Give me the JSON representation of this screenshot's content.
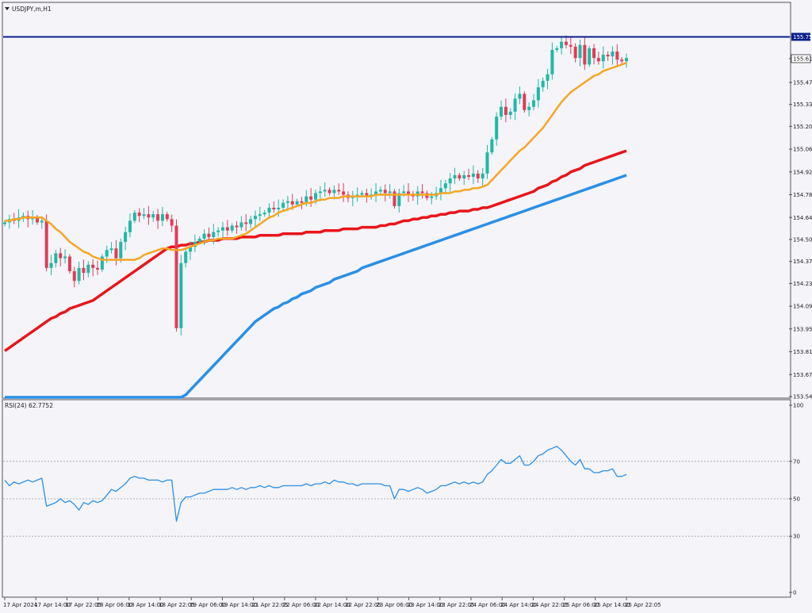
{
  "window": {
    "symbol_title": "USDJPY,m,H1"
  },
  "colors": {
    "background": "#f4f4f9",
    "bull": "#1fb8a6",
    "bear": "#e03c57",
    "ma_short": "#f6a623",
    "ma_mid": "#e8161b",
    "ma_long": "#2b8fe6",
    "rsi_line": "#2b8fe6",
    "level_line": "#0a1f8a",
    "current_price_box": "#ffffff"
  },
  "chart_data": [
    {
      "type": "candlestick",
      "title": "USDJPY,m,H1",
      "ylim": [
        153.54,
        155.84
      ],
      "y_ticks": [
        "155.750",
        "155.616",
        "155.470",
        "155.335",
        "155.200",
        "155.060",
        "154.920",
        "154.780",
        "154.640",
        "154.505",
        "154.370",
        "154.235",
        "154.095",
        "153.955",
        "153.815",
        "153.675",
        "153.540"
      ],
      "x_ticks": [
        "17 Apr 2024",
        "17 Apr 14:00",
        "17 Apr 22:05",
        "18 Apr 06:00",
        "18 Apr 14:00",
        "18 Apr 22:05",
        "19 Apr 06:00",
        "19 Apr 14:00",
        "21 Apr 22:05",
        "22 Apr 06:00",
        "22 Apr 14:00",
        "22 Apr 22:05",
        "23 Apr 06:00",
        "23 Apr 14:00",
        "23 Apr 22:05",
        "24 Apr 06:00",
        "24 Apr 14:00",
        "24 Apr 22:05",
        "25 Apr 06:00",
        "25 Apr 14:00",
        "25 Apr 22:05"
      ],
      "horizontal_level": 155.75,
      "current_price": 155.616,
      "close": [
        154.61,
        154.63,
        154.62,
        154.64,
        154.65,
        154.63,
        154.64,
        154.61,
        154.62,
        154.33,
        154.36,
        154.42,
        154.39,
        154.4,
        154.31,
        154.25,
        154.33,
        154.3,
        154.35,
        154.33,
        154.32,
        154.4,
        154.44,
        154.45,
        154.39,
        154.49,
        154.55,
        154.62,
        154.67,
        154.65,
        154.66,
        154.64,
        154.66,
        154.62,
        154.66,
        154.63,
        154.59,
        153.96,
        154.36,
        154.43,
        154.46,
        154.49,
        154.51,
        154.54,
        154.52,
        154.55,
        154.56,
        154.58,
        154.56,
        154.59,
        154.58,
        154.61,
        154.6,
        154.63,
        154.65,
        154.66,
        154.67,
        154.7,
        154.69,
        154.7,
        154.73,
        154.74,
        154.72,
        154.74,
        154.73,
        154.77,
        154.75,
        154.79,
        154.8,
        154.81,
        154.79,
        154.81,
        154.8,
        154.78,
        154.76,
        154.77,
        154.78,
        154.79,
        154.77,
        154.78,
        154.8,
        154.81,
        154.79,
        154.8,
        154.71,
        154.79,
        154.8,
        154.78,
        154.77,
        154.8,
        154.79,
        154.76,
        154.77,
        154.79,
        154.82,
        154.85,
        154.88,
        154.9,
        154.88,
        154.9,
        154.89,
        154.91,
        154.88,
        154.91,
        155.04,
        155.12,
        155.26,
        155.32,
        155.27,
        155.29,
        155.37,
        155.4,
        155.3,
        155.32,
        155.36,
        155.44,
        155.48,
        155.52,
        155.67,
        155.68,
        155.72,
        155.7,
        155.69,
        155.62,
        155.7,
        155.58,
        155.68,
        155.62,
        155.6,
        155.64,
        155.63,
        155.66,
        155.61,
        155.6,
        155.62
      ],
      "ma_short_values": [
        154.62,
        154.62,
        154.63,
        154.63,
        154.64,
        154.64,
        154.64,
        154.64,
        154.64,
        154.62,
        154.6,
        154.57,
        154.55,
        154.52,
        154.49,
        154.47,
        154.45,
        154.43,
        154.42,
        154.4,
        154.39,
        154.38,
        154.38,
        154.38,
        154.38,
        154.38,
        154.38,
        154.38,
        154.38,
        154.39,
        154.41,
        154.42,
        154.43,
        154.44,
        154.45,
        154.45,
        154.44,
        154.44,
        154.44,
        154.45,
        154.46,
        154.47,
        154.48,
        154.49,
        154.5,
        154.5,
        154.51,
        154.51,
        154.51,
        154.51,
        154.52,
        154.53,
        154.54,
        154.56,
        154.58,
        154.6,
        154.62,
        154.64,
        154.65,
        154.67,
        154.68,
        154.69,
        154.7,
        154.71,
        154.72,
        154.73,
        154.73,
        154.74,
        154.75,
        154.75,
        154.76,
        154.76,
        154.76,
        154.77,
        154.77,
        154.77,
        154.77,
        154.77,
        154.77,
        154.77,
        154.78,
        154.78,
        154.78,
        154.78,
        154.78,
        154.78,
        154.78,
        154.78,
        154.78,
        154.78,
        154.78,
        154.78,
        154.78,
        154.78,
        154.79,
        154.79,
        154.79,
        154.8,
        154.8,
        154.81,
        154.81,
        154.82,
        154.82,
        154.83,
        154.84,
        154.87,
        154.9,
        154.93,
        154.96,
        154.99,
        155.02,
        155.05,
        155.07,
        155.1,
        155.13,
        155.16,
        155.19,
        155.23,
        155.27,
        155.31,
        155.35,
        155.38,
        155.41,
        155.43,
        155.45,
        155.47,
        155.49,
        155.51,
        155.52,
        155.54,
        155.55,
        155.56,
        155.57,
        155.58,
        155.59
      ],
      "ma_mid_values": [
        153.82,
        153.84,
        153.86,
        153.88,
        153.9,
        153.92,
        153.94,
        153.96,
        153.98,
        154.0,
        154.02,
        154.03,
        154.05,
        154.06,
        154.08,
        154.09,
        154.1,
        154.11,
        154.12,
        154.13,
        154.15,
        154.17,
        154.19,
        154.21,
        154.23,
        154.25,
        154.27,
        154.29,
        154.31,
        154.33,
        154.35,
        154.37,
        154.39,
        154.41,
        154.43,
        154.45,
        154.46,
        154.46,
        154.47,
        154.47,
        154.48,
        154.48,
        154.49,
        154.49,
        154.5,
        154.5,
        154.5,
        154.51,
        154.51,
        154.51,
        154.51,
        154.52,
        154.52,
        154.52,
        154.52,
        154.53,
        154.53,
        154.53,
        154.53,
        154.53,
        154.54,
        154.54,
        154.54,
        154.54,
        154.54,
        154.55,
        154.55,
        154.55,
        154.55,
        154.56,
        154.56,
        154.56,
        154.56,
        154.57,
        154.57,
        154.57,
        154.57,
        154.58,
        154.58,
        154.58,
        154.58,
        154.59,
        154.59,
        154.6,
        154.6,
        154.61,
        154.62,
        154.62,
        154.63,
        154.63,
        154.64,
        154.64,
        154.65,
        154.65,
        154.66,
        154.66,
        154.67,
        154.67,
        154.68,
        154.68,
        154.68,
        154.69,
        154.69,
        154.7,
        154.7,
        154.71,
        154.72,
        154.73,
        154.74,
        154.75,
        154.76,
        154.77,
        154.78,
        154.79,
        154.8,
        154.82,
        154.83,
        154.84,
        154.86,
        154.87,
        154.89,
        154.9,
        154.92,
        154.93,
        154.94,
        154.96,
        154.97,
        154.98,
        154.99,
        155.0,
        155.01,
        155.02,
        155.03,
        155.04,
        155.05
      ],
      "ma_long_values": [
        153.5,
        153.5,
        153.5,
        153.5,
        153.5,
        153.5,
        153.5,
        153.5,
        153.5,
        153.5,
        153.5,
        153.5,
        153.5,
        153.5,
        153.5,
        153.5,
        153.5,
        153.5,
        153.5,
        153.5,
        153.5,
        153.5,
        153.5,
        153.5,
        153.5,
        153.5,
        153.5,
        153.5,
        153.5,
        153.5,
        153.5,
        153.5,
        153.5,
        153.5,
        153.5,
        153.5,
        153.5,
        153.5,
        153.52,
        153.55,
        153.58,
        153.61,
        153.64,
        153.67,
        153.7,
        153.73,
        153.76,
        153.79,
        153.82,
        153.85,
        153.88,
        153.91,
        153.94,
        153.97,
        154.0,
        154.02,
        154.04,
        154.06,
        154.08,
        154.09,
        154.11,
        154.12,
        154.14,
        154.15,
        154.17,
        154.18,
        154.19,
        154.21,
        154.22,
        154.23,
        154.24,
        154.26,
        154.27,
        154.28,
        154.29,
        154.3,
        154.31,
        154.33,
        154.34,
        154.35,
        154.36,
        154.37,
        154.38,
        154.39,
        154.4,
        154.41,
        154.42,
        154.43,
        154.44,
        154.45,
        154.46,
        154.47,
        154.48,
        154.49,
        154.5,
        154.51,
        154.52,
        154.53,
        154.54,
        154.55,
        154.56,
        154.57,
        154.58,
        154.59,
        154.6,
        154.61,
        154.62,
        154.63,
        154.64,
        154.65,
        154.66,
        154.67,
        154.68,
        154.69,
        154.7,
        154.71,
        154.72,
        154.73,
        154.74,
        154.75,
        154.76,
        154.77,
        154.78,
        154.79,
        154.8,
        154.81,
        154.82,
        154.83,
        154.84,
        154.85,
        154.86,
        154.87,
        154.88,
        154.89,
        154.9
      ]
    },
    {
      "type": "line",
      "title": "RSI(24) 62.7752",
      "ylim": [
        0,
        100
      ],
      "y_ticks": [
        "100",
        "70",
        "50",
        "30",
        "0"
      ],
      "levels": [
        70,
        50,
        30
      ],
      "values": [
        60,
        57,
        59,
        58,
        59,
        60,
        59,
        60,
        61,
        46,
        47,
        48,
        50,
        48,
        49,
        47,
        44,
        48,
        47,
        49,
        48,
        49,
        52,
        55,
        54,
        56,
        58,
        61,
        62,
        61,
        61,
        60,
        60,
        60,
        59,
        60,
        60,
        38,
        48,
        51,
        51,
        52,
        53,
        53,
        54,
        55,
        55,
        55,
        55,
        56,
        55,
        56,
        55,
        56,
        56,
        57,
        56,
        57,
        56,
        56,
        57,
        57,
        57,
        57,
        57,
        58,
        57,
        58,
        58,
        59,
        58,
        60,
        59,
        59,
        58,
        58,
        57,
        58,
        58,
        58,
        58,
        58,
        57,
        57,
        50,
        55,
        55,
        54,
        55,
        56,
        55,
        53,
        54,
        55,
        57,
        57,
        58,
        59,
        58,
        59,
        58,
        59,
        58,
        59,
        63,
        65,
        68,
        71,
        69,
        69,
        71,
        73,
        68,
        68,
        70,
        73,
        74,
        76,
        77,
        78,
        76,
        73,
        70,
        68,
        71,
        66,
        66,
        64,
        64,
        65,
        65,
        66,
        62,
        62,
        63
      ]
    }
  ]
}
